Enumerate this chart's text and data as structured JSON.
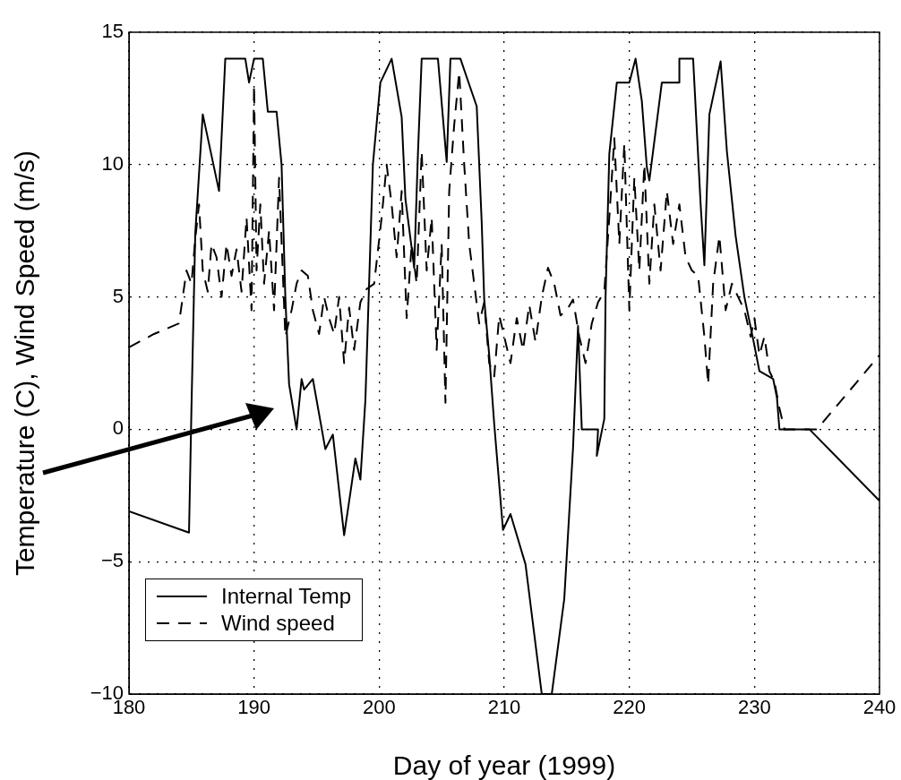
{
  "chart_data": {
    "type": "line",
    "xlabel": "Day of year (1999)",
    "ylabel": "Temperature (C), Wind Speed (m/s)",
    "xlim": [
      180,
      240
    ],
    "xticks": [
      180,
      190,
      200,
      210,
      220,
      230,
      240
    ],
    "ylim": [
      -10,
      15
    ],
    "yticks": [
      -10,
      -5,
      0,
      5,
      10,
      15
    ],
    "grid": true,
    "legend": "bottom left",
    "marker": "none",
    "series": [
      {
        "name": "Internal Temp",
        "color": "#000000",
        "line_style": "solid",
        "x": [
          180,
          184.8,
          185.0,
          185.3,
          185.9,
          187.2,
          187.7,
          189.3,
          189.6,
          190.0,
          190.7,
          191.1,
          191.8,
          192.2,
          192.5,
          192.8,
          193.4,
          193.8,
          194.0,
          194.7,
          195.7,
          196.3,
          197.2,
          197.7,
          198.1,
          198.5,
          198.9,
          199.5,
          200.1,
          201.0,
          201.8,
          202.1,
          202.8,
          203.1,
          203.4,
          204.7,
          205.4,
          205.7,
          206.5,
          207.0,
          207.8,
          208.2,
          208.4,
          208.8,
          209.2,
          209.9,
          210.5,
          211.7,
          213.0,
          213.8,
          214.8,
          215.5,
          215.9,
          216.2,
          217.5,
          217.4,
          218.0,
          218.1,
          218.4,
          219.0,
          220.0,
          220.5,
          221.0,
          221.4,
          221.6,
          222.6,
          224.0,
          224.0,
          225.1,
          225.7,
          226.0,
          226.4,
          227.3,
          227.8,
          228.5,
          229.2,
          229.9,
          230.4,
          231.5,
          231.8,
          232.0,
          234.4,
          240
        ],
        "values": [
          -3.1,
          -3.9,
          0.9,
          7.4,
          11.9,
          9.0,
          14,
          14,
          13.1,
          14,
          14,
          12.0,
          12,
          10.0,
          5,
          1.7,
          0,
          1.9,
          1.5,
          1.9,
          -0.75,
          -0.2,
          -4.0,
          -2.4,
          -1.1,
          -1.9,
          1.1,
          10,
          13.1,
          14,
          11.8,
          8.7,
          6.1,
          10.4,
          14,
          14,
          10.1,
          14,
          14,
          13.3,
          12.2,
          7.8,
          4.9,
          2.8,
          0.2,
          -3.8,
          -3.2,
          -5.1,
          -10,
          -10,
          -6.4,
          -0.7,
          3.9,
          0,
          0,
          -1.0,
          0.4,
          5.0,
          10.4,
          13.1,
          13.1,
          14,
          12.4,
          9.9,
          9.4,
          13.1,
          13.1,
          14,
          14,
          8.5,
          6.2,
          11.9,
          13.9,
          10.5,
          7.3,
          5.0,
          3.4,
          2.2,
          1.9,
          1.2,
          0,
          0,
          -2.7
        ]
      },
      {
        "name": "Wind speed",
        "color": "#000000",
        "line_style": "dashed",
        "x": [
          180,
          182,
          184,
          184.6,
          185,
          185.3,
          185.6,
          185.9,
          186.3,
          186.6,
          187,
          187.4,
          187.8,
          188.2,
          188.6,
          189,
          189.4,
          189.8,
          190,
          190.2,
          190.5,
          190.8,
          191.2,
          191.6,
          192,
          192.5,
          193,
          193.4,
          193.8,
          194.3,
          194.7,
          195.2,
          195.6,
          196,
          196.4,
          196.8,
          197.2,
          197.6,
          198,
          198.5,
          199,
          199.6,
          200.2,
          200.6,
          201,
          201.4,
          201.8,
          202.2,
          202.6,
          203,
          203.4,
          203.8,
          204.2,
          204.6,
          205,
          205.3,
          205.6,
          206,
          206.4,
          206.8,
          207.2,
          207.6,
          208,
          208.4,
          208.8,
          209.2,
          209.6,
          210,
          210.5,
          211,
          211.5,
          212,
          212.5,
          213,
          213.5,
          214,
          214.5,
          215,
          215.5,
          216,
          216.5,
          217,
          217.5,
          218,
          218.4,
          218.8,
          219.2,
          219.6,
          220,
          220.4,
          220.8,
          221.2,
          221.6,
          222,
          222.5,
          223,
          223.5,
          224,
          224.5,
          225,
          225.5,
          226,
          226.3,
          226.7,
          227.2,
          227.7,
          228.2,
          228.7,
          229.2,
          229.7,
          230,
          230.4,
          230.8,
          231.2,
          231.6,
          232,
          232.4,
          235,
          240
        ],
        "values": [
          3.1,
          3.6,
          4.0,
          6,
          5.5,
          7.2,
          8.5,
          6.0,
          5.2,
          7.0,
          6.5,
          5.0,
          7.0,
          5.8,
          6.8,
          5.2,
          8.0,
          4.5,
          13,
          6,
          8.5,
          5.5,
          7.5,
          4.5,
          9.5,
          3.5,
          4.5,
          5.5,
          6,
          5.8,
          4.5,
          3.6,
          5.0,
          4.2,
          3.6,
          5,
          2.5,
          4.6,
          3.0,
          4.8,
          5.3,
          5.5,
          8,
          10,
          8.5,
          6.5,
          9,
          4.2,
          7,
          5.5,
          10.5,
          6,
          8,
          3,
          7,
          1.0,
          9,
          11.5,
          13.5,
          10,
          7,
          5.5,
          4,
          4.8,
          2.5,
          2,
          4.3,
          3.5,
          2.5,
          4.2,
          3,
          4.7,
          3.3,
          5,
          6.1,
          5.5,
          4.3,
          4.5,
          4.9,
          3.5,
          2.5,
          4.0,
          4.8,
          5.2,
          8,
          11,
          7,
          10.8,
          4.5,
          9.5,
          6,
          10,
          5.5,
          8.5,
          6,
          9,
          7,
          8.5,
          6.5,
          6,
          5.8,
          3.5,
          1.7,
          5.5,
          7.3,
          4.5,
          5.5,
          5.0,
          4.5,
          3.5,
          4.2,
          2.8,
          3.5,
          2.2,
          1.8,
          0.8,
          0,
          0,
          2.8
        ]
      }
    ]
  }
}
